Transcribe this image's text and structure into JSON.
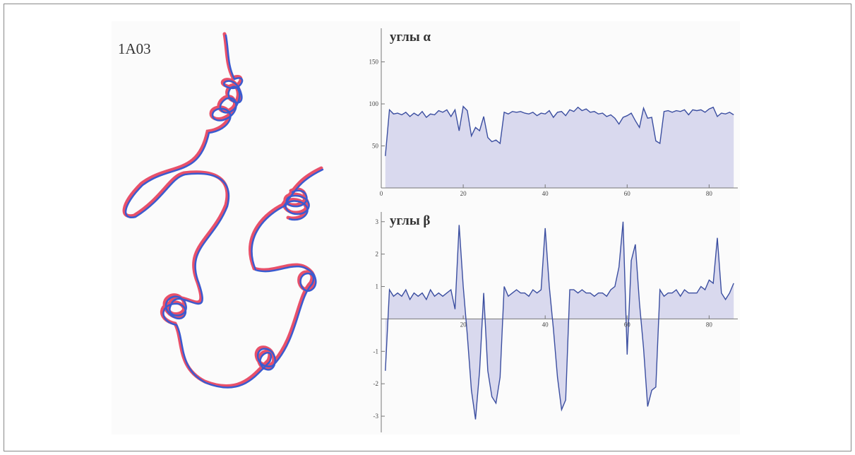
{
  "figure": {
    "label": "1A03"
  },
  "chart_data": [
    {
      "type": "area",
      "title": "углы α",
      "x": [
        1,
        2,
        3,
        4,
        5,
        6,
        7,
        8,
        9,
        10,
        11,
        12,
        13,
        14,
        15,
        16,
        17,
        18,
        19,
        20,
        21,
        22,
        23,
        24,
        25,
        26,
        27,
        28,
        29,
        30,
        31,
        32,
        33,
        34,
        35,
        36,
        37,
        38,
        39,
        40,
        41,
        42,
        43,
        44,
        45,
        46,
        47,
        48,
        49,
        50,
        51,
        52,
        53,
        54,
        55,
        56,
        57,
        58,
        59,
        60,
        61,
        62,
        63,
        64,
        65,
        66,
        67,
        68,
        69,
        70,
        71,
        72,
        73,
        74,
        75,
        76,
        77,
        78,
        79,
        80,
        81,
        82,
        83,
        84,
        85,
        86
      ],
      "values": [
        38,
        93,
        88,
        89,
        87,
        90,
        85,
        89,
        86,
        91,
        84,
        88,
        87,
        92,
        90,
        93,
        85,
        93,
        68,
        97,
        92,
        62,
        72,
        68,
        85,
        60,
        55,
        57,
        53,
        90,
        88,
        91,
        90,
        91,
        89,
        88,
        90,
        86,
        89,
        88,
        92,
        84,
        90,
        91,
        86,
        93,
        91,
        96,
        92,
        94,
        90,
        91,
        88,
        89,
        85,
        87,
        83,
        76,
        84,
        86,
        89,
        80,
        72,
        95,
        83,
        84,
        56,
        53,
        91,
        92,
        90,
        92,
        91,
        93,
        87,
        93,
        92,
        93,
        90,
        94,
        96,
        85,
        89,
        88,
        90,
        87
      ],
      "color": "#3b4ea0",
      "fill": "#d9d9ee",
      "xlim": [
        0,
        87
      ],
      "xticks": [
        0,
        20,
        40,
        60,
        80
      ],
      "ylim": [
        0,
        190
      ],
      "yticks": [
        50,
        100,
        150
      ]
    },
    {
      "type": "area",
      "title": "углы β",
      "x": [
        1,
        2,
        3,
        4,
        5,
        6,
        7,
        8,
        9,
        10,
        11,
        12,
        13,
        14,
        15,
        16,
        17,
        18,
        19,
        20,
        21,
        22,
        23,
        24,
        25,
        26,
        27,
        28,
        29,
        30,
        31,
        32,
        33,
        34,
        35,
        36,
        37,
        38,
        39,
        40,
        41,
        42,
        43,
        44,
        45,
        46,
        47,
        48,
        49,
        50,
        51,
        52,
        53,
        54,
        55,
        56,
        57,
        58,
        59,
        60,
        61,
        62,
        63,
        64,
        65,
        66,
        67,
        68,
        69,
        70,
        71,
        72,
        73,
        74,
        75,
        76,
        77,
        78,
        79,
        80,
        81,
        82,
        83,
        84,
        85,
        86
      ],
      "values": [
        -1.6,
        0.9,
        0.7,
        0.8,
        0.7,
        0.9,
        0.6,
        0.8,
        0.7,
        0.8,
        0.6,
        0.9,
        0.7,
        0.8,
        0.7,
        0.8,
        0.9,
        0.3,
        2.9,
        1.0,
        -0.5,
        -2.2,
        -3.1,
        -1.6,
        0.8,
        -1.6,
        -2.4,
        -2.6,
        -1.8,
        1.0,
        0.7,
        0.8,
        0.9,
        0.8,
        0.8,
        0.7,
        0.9,
        0.8,
        0.9,
        2.8,
        1.0,
        -0.3,
        -1.8,
        -2.8,
        -2.5,
        0.9,
        0.9,
        0.8,
        0.9,
        0.8,
        0.8,
        0.7,
        0.8,
        0.8,
        0.7,
        0.9,
        1.0,
        1.6,
        3.0,
        -1.1,
        1.8,
        2.3,
        0.5,
        -0.9,
        -2.7,
        -2.2,
        -2.1,
        0.9,
        0.7,
        0.8,
        0.8,
        0.9,
        0.7,
        0.9,
        0.8,
        0.8,
        0.8,
        1.0,
        0.9,
        1.2,
        1.1,
        2.5,
        0.8,
        0.6,
        0.8,
        1.1
      ],
      "color": "#3b4ea0",
      "fill": "#d9d9ee",
      "xlim": [
        0,
        87
      ],
      "xticks": [
        20,
        40,
        60,
        80
      ],
      "ylim": [
        -3.5,
        3.3
      ],
      "yticks": [
        -3,
        -2,
        -1,
        1,
        2,
        3
      ]
    }
  ]
}
